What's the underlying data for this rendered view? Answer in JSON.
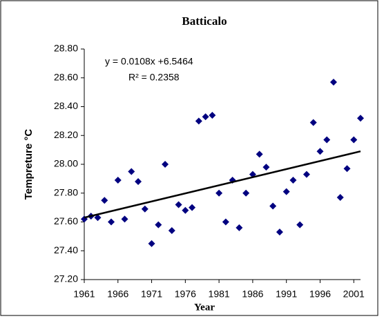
{
  "chart_data": {
    "type": "scatter",
    "title": "Batticalo",
    "x_label": "Year",
    "y_label": "Tempreture °C",
    "annotations": [
      "y = 0.0108x +6.5464",
      "R² = 0.2358"
    ],
    "x": [
      1961,
      1962,
      1963,
      1964,
      1965,
      1966,
      1967,
      1968,
      1969,
      1970,
      1971,
      1972,
      1973,
      1974,
      1975,
      1976,
      1977,
      1978,
      1979,
      1980,
      1981,
      1982,
      1983,
      1984,
      1985,
      1986,
      1987,
      1988,
      1989,
      1990,
      1991,
      1992,
      1993,
      1994,
      1995,
      1996,
      1997,
      1998,
      1999,
      2000,
      2001,
      2002
    ],
    "values": [
      27.62,
      27.64,
      27.63,
      27.75,
      27.6,
      27.89,
      27.62,
      27.95,
      27.88,
      27.69,
      27.45,
      27.58,
      28.0,
      27.54,
      27.72,
      27.68,
      27.7,
      28.3,
      28.33,
      28.34,
      27.8,
      27.6,
      27.89,
      27.56,
      27.8,
      27.93,
      28.07,
      27.98,
      27.71,
      27.53,
      27.81,
      27.89,
      27.58,
      27.93,
      28.29,
      28.09,
      28.17,
      28.57,
      27.77,
      27.97,
      28.17,
      28.32
    ],
    "color": "#000080",
    "trendline": {
      "x": [
        1961,
        2002
      ],
      "y": [
        27.63,
        28.09
      ],
      "color": "#000000"
    },
    "xlim": [
      1961,
      2002
    ],
    "ylim": [
      27.2,
      28.8
    ],
    "xticks": [
      1961,
      1966,
      1971,
      1976,
      1981,
      1986,
      1991,
      1996,
      2001
    ],
    "yticks": [
      {
        "value": 27.2,
        "label": "27.20"
      },
      {
        "value": 27.4,
        "label": "27.40"
      },
      {
        "value": 27.6,
        "label": "27.60"
      },
      {
        "value": 27.8,
        "label": "27.80"
      },
      {
        "value": 28.0,
        "label": "28.00"
      },
      {
        "value": 28.2,
        "label": "28.20"
      },
      {
        "value": 28.4,
        "label": "28.40"
      },
      {
        "value": 28.6,
        "label": "28.60"
      },
      {
        "value": 28.8,
        "label": "28.80"
      }
    ],
    "grid": false
  }
}
